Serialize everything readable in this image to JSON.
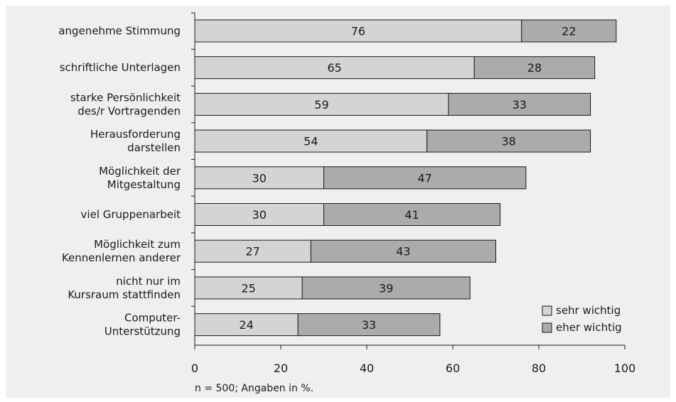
{
  "chart_data": {
    "type": "bar",
    "orientation": "horizontal",
    "stacked": true,
    "categories": [
      [
        "angenehme Stimmung"
      ],
      [
        "schriftliche Unterlagen"
      ],
      [
        "starke Persönlichkeit",
        "des/r Vortragenden"
      ],
      [
        "Herausforderung",
        "darstellen"
      ],
      [
        "Möglichkeit der",
        "Mitgestaltung"
      ],
      [
        "viel Gruppenarbeit"
      ],
      [
        "Möglichkeit zum",
        "Kennenlernen anderer"
      ],
      [
        "nicht nur im",
        "Kursraum stattfinden"
      ],
      [
        "Computer-",
        "Unterstützung"
      ]
    ],
    "series": [
      {
        "name": "sehr wichtig",
        "color": "#d4d4d4",
        "values": [
          76,
          65,
          59,
          54,
          30,
          30,
          27,
          25,
          24
        ]
      },
      {
        "name": "eher wichtig",
        "color": "#ababab",
        "values": [
          22,
          28,
          33,
          38,
          47,
          41,
          43,
          39,
          33
        ]
      }
    ],
    "xlim": [
      0,
      100
    ],
    "xticks": [
      0,
      20,
      40,
      60,
      80,
      100
    ],
    "legend_position": "bottom-right",
    "grid": false
  },
  "footnote": "n = 500;  Angaben in %."
}
